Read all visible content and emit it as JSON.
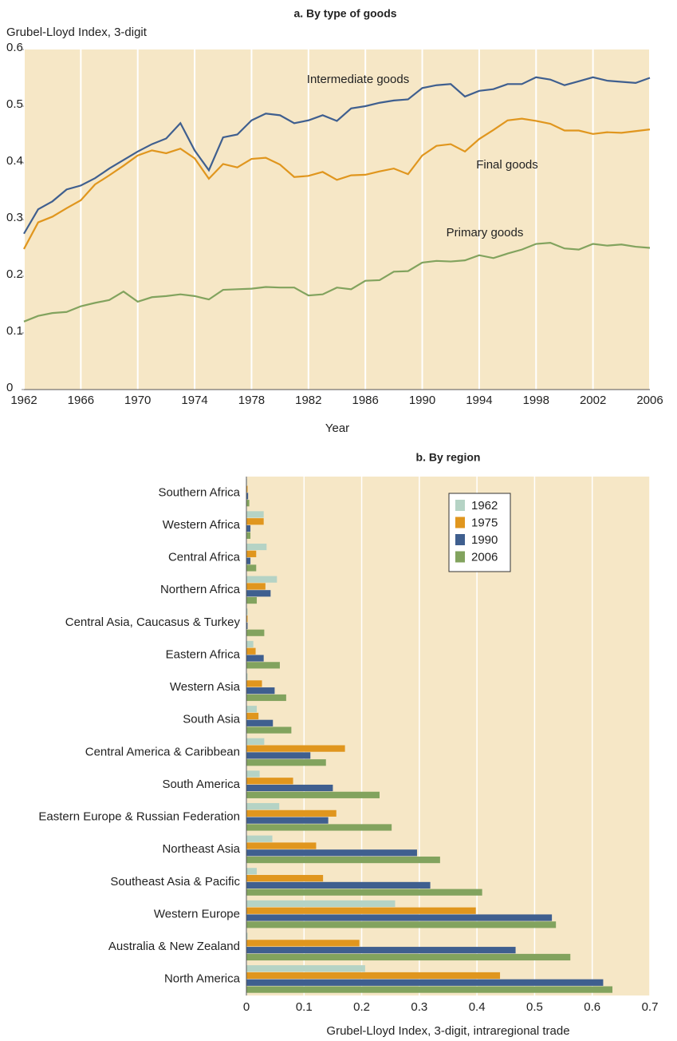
{
  "chart_data": [
    {
      "type": "line",
      "title": "a. By type of goods",
      "y_label": "Grubel-Lloyd Index, 3-digit",
      "x_label": "Year",
      "x": [
        1962,
        1963,
        1964,
        1965,
        1966,
        1967,
        1968,
        1969,
        1970,
        1971,
        1972,
        1973,
        1974,
        1975,
        1976,
        1977,
        1978,
        1979,
        1980,
        1981,
        1982,
        1983,
        1984,
        1985,
        1986,
        1987,
        1988,
        1989,
        1990,
        1991,
        1992,
        1993,
        1994,
        1995,
        1996,
        1997,
        1998,
        1999,
        2000,
        2001,
        2002,
        2003,
        2004,
        2005,
        2006
      ],
      "xlim": [
        1962,
        2006
      ],
      "xticks": [
        1962,
        1966,
        1970,
        1974,
        1978,
        1982,
        1986,
        1990,
        1994,
        1998,
        2002,
        2006
      ],
      "ylim": [
        0,
        0.6
      ],
      "yticks": [
        0,
        0.1,
        0.2,
        0.3,
        0.4,
        0.5,
        0.6
      ],
      "grid": "x",
      "series": [
        {
          "name": "Intermediate goods",
          "color": "#3f5f8f",
          "values": [
            0.275,
            0.318,
            0.332,
            0.353,
            0.36,
            0.373,
            0.39,
            0.405,
            0.42,
            0.433,
            0.443,
            0.47,
            0.422,
            0.387,
            0.445,
            0.45,
            0.475,
            0.487,
            0.484,
            0.47,
            0.475,
            0.484,
            0.474,
            0.496,
            0.5,
            0.506,
            0.51,
            0.512,
            0.532,
            0.537,
            0.539,
            0.517,
            0.527,
            0.53,
            0.539,
            0.539,
            0.551,
            0.547,
            0.537,
            0.544,
            0.551,
            0.545,
            0.543,
            0.541,
            0.55
          ]
        },
        {
          "name": "Final goods",
          "color": "#e0961e",
          "values": [
            0.248,
            0.295,
            0.305,
            0.32,
            0.334,
            0.362,
            0.378,
            0.395,
            0.413,
            0.422,
            0.417,
            0.425,
            0.408,
            0.372,
            0.398,
            0.392,
            0.407,
            0.409,
            0.397,
            0.375,
            0.377,
            0.384,
            0.37,
            0.378,
            0.379,
            0.385,
            0.39,
            0.38,
            0.413,
            0.43,
            0.433,
            0.42,
            0.442,
            0.458,
            0.475,
            0.478,
            0.474,
            0.469,
            0.457,
            0.457,
            0.451,
            0.454,
            0.453,
            0.456,
            0.459
          ]
        },
        {
          "name": "Primary goods",
          "color": "#82a35e",
          "values": [
            0.12,
            0.13,
            0.135,
            0.137,
            0.147,
            0.153,
            0.158,
            0.173,
            0.155,
            0.163,
            0.165,
            0.168,
            0.165,
            0.159,
            0.176,
            0.177,
            0.178,
            0.181,
            0.18,
            0.18,
            0.166,
            0.168,
            0.18,
            0.177,
            0.192,
            0.193,
            0.208,
            0.209,
            0.224,
            0.227,
            0.226,
            0.228,
            0.237,
            0.232,
            0.24,
            0.247,
            0.257,
            0.259,
            0.249,
            0.247,
            0.257,
            0.254,
            0.256,
            0.252,
            0.25
          ]
        }
      ]
    },
    {
      "type": "bar",
      "orientation": "horizontal",
      "title": "b. By region",
      "x_label": "Grubel-Lloyd Index, 3-digit, intraregional trade",
      "categories": [
        "Southern Africa",
        "Western Africa",
        "Central Africa",
        "Northern Africa",
        "Central Asia, Caucasus & Turkey",
        "Eastern Africa",
        "Western Asia",
        "South Asia",
        "Central America & Caribbean",
        "South America",
        "Eastern Europe & Russian Federation",
        "Northeast Asia",
        "Southeast Asia & Pacific",
        "Western Europe",
        "Australia & New Zealand",
        "North America"
      ],
      "xlim": [
        0,
        0.7
      ],
      "xticks": [
        0,
        0.1,
        0.2,
        0.3,
        0.4,
        0.5,
        0.6,
        0.7
      ],
      "grid": "x",
      "legend": "upper right",
      "series": [
        {
          "name": "1962",
          "color": "#b5d3c5",
          "values": [
            0.001,
            0.03,
            0.035,
            0.053,
            0.002,
            0.012,
            0.002,
            0.018,
            0.031,
            0.023,
            0.057,
            0.045,
            0.018,
            0.258,
            0.002,
            0.206
          ]
        },
        {
          "name": "1975",
          "color": "#e0961e",
          "values": [
            0.002,
            0.03,
            0.017,
            0.033,
            0.002,
            0.016,
            0.027,
            0.021,
            0.171,
            0.081,
            0.156,
            0.121,
            0.133,
            0.398,
            0.196,
            0.44
          ]
        },
        {
          "name": "1990",
          "color": "#3f5f8f",
          "values": [
            0.003,
            0.007,
            0.007,
            0.042,
            0.002,
            0.03,
            0.049,
            0.046,
            0.111,
            0.15,
            0.142,
            0.296,
            0.319,
            0.53,
            0.467,
            0.619
          ]
        },
        {
          "name": "2006",
          "color": "#82a35e",
          "values": [
            0.005,
            0.007,
            0.017,
            0.018,
            0.031,
            0.058,
            0.069,
            0.078,
            0.138,
            0.231,
            0.252,
            0.336,
            0.409,
            0.537,
            0.562,
            0.635
          ]
        }
      ]
    }
  ]
}
